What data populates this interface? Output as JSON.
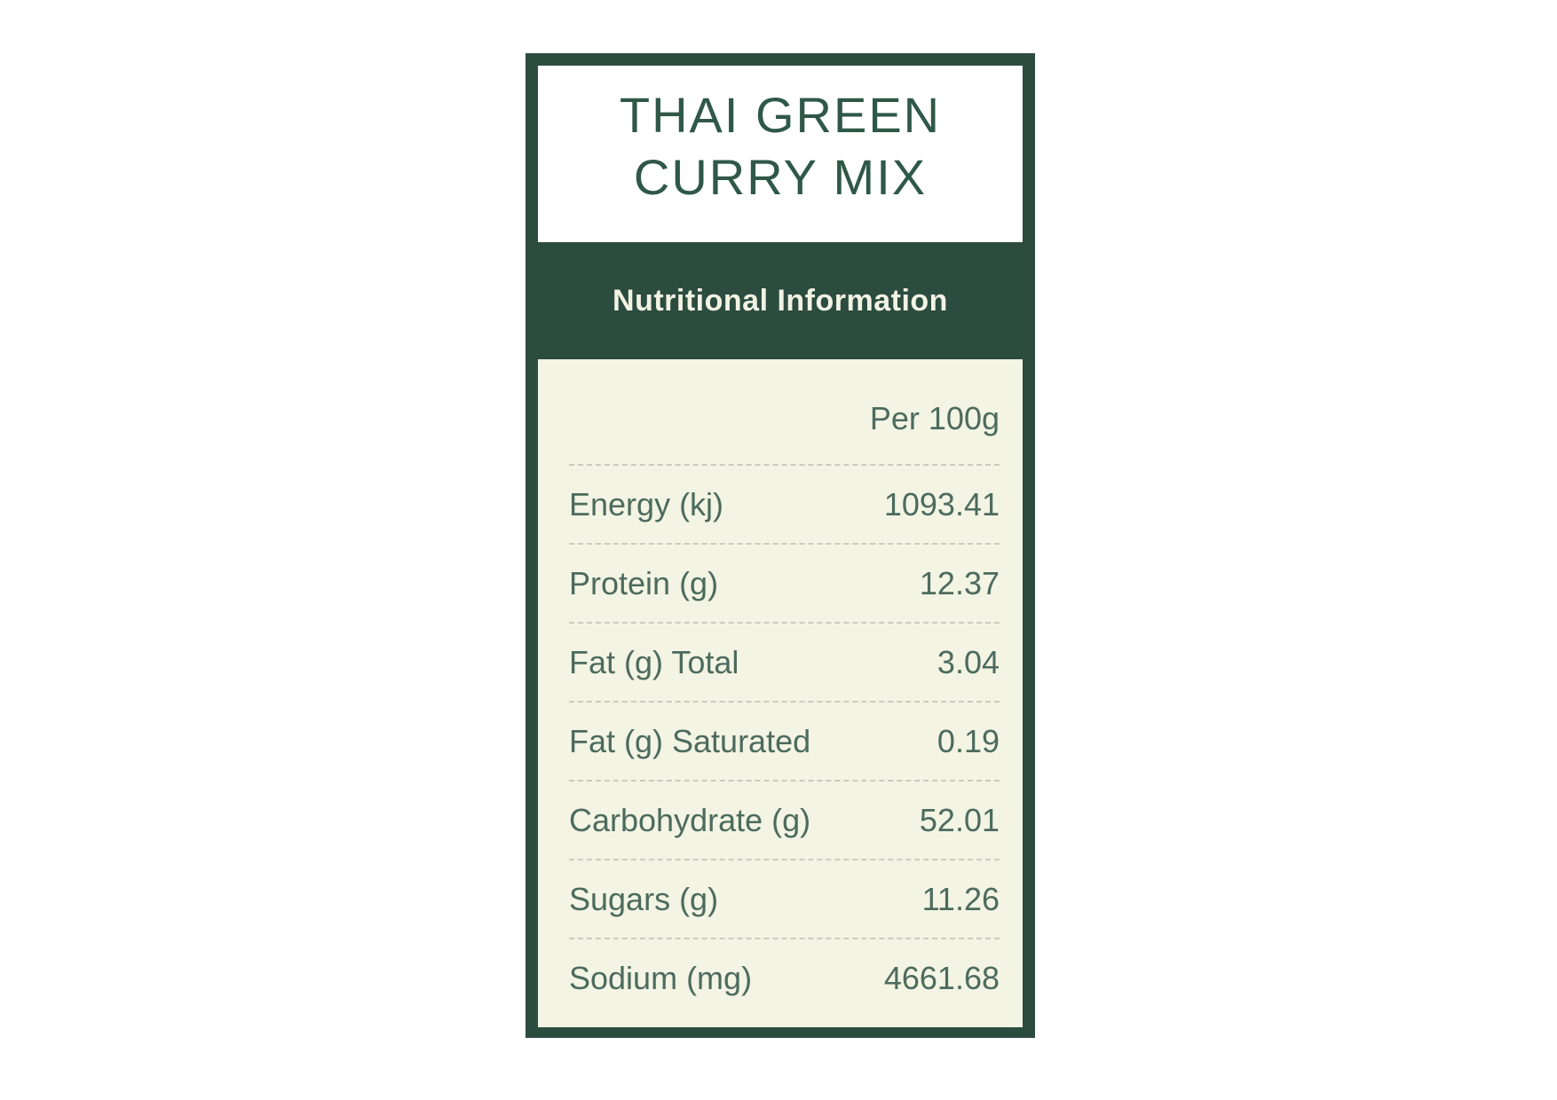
{
  "card": {
    "title_lines": [
      "THAI GREEN",
      "CURRY MIX"
    ],
    "section_header": "Nutritional Information",
    "table": {
      "column_header": "Per 100g",
      "rows": [
        {
          "label": "Energy (kj)",
          "value": "1093.41"
        },
        {
          "label": "Protein (g)",
          "value": "12.37"
        },
        {
          "label": "Fat (g) Total",
          "value": "3.04"
        },
        {
          "label": "Fat (g) Saturated",
          "value": "0.19"
        },
        {
          "label": "Carbohydrate (g)",
          "value": "52.01"
        },
        {
          "label": "Sugars (g)",
          "value": "11.26"
        },
        {
          "label": "Sodium (mg)",
          "value": "4661.68"
        }
      ]
    }
  },
  "colors": {
    "border_green": "#2c4c40",
    "cream": "#f3f4e3",
    "title_green": "#2f5849",
    "table_text_green": "#4c6b5e",
    "band_text_cream": "#f2f3e3",
    "separator": "#c9ccbe",
    "page_bg": "#ffffff"
  }
}
